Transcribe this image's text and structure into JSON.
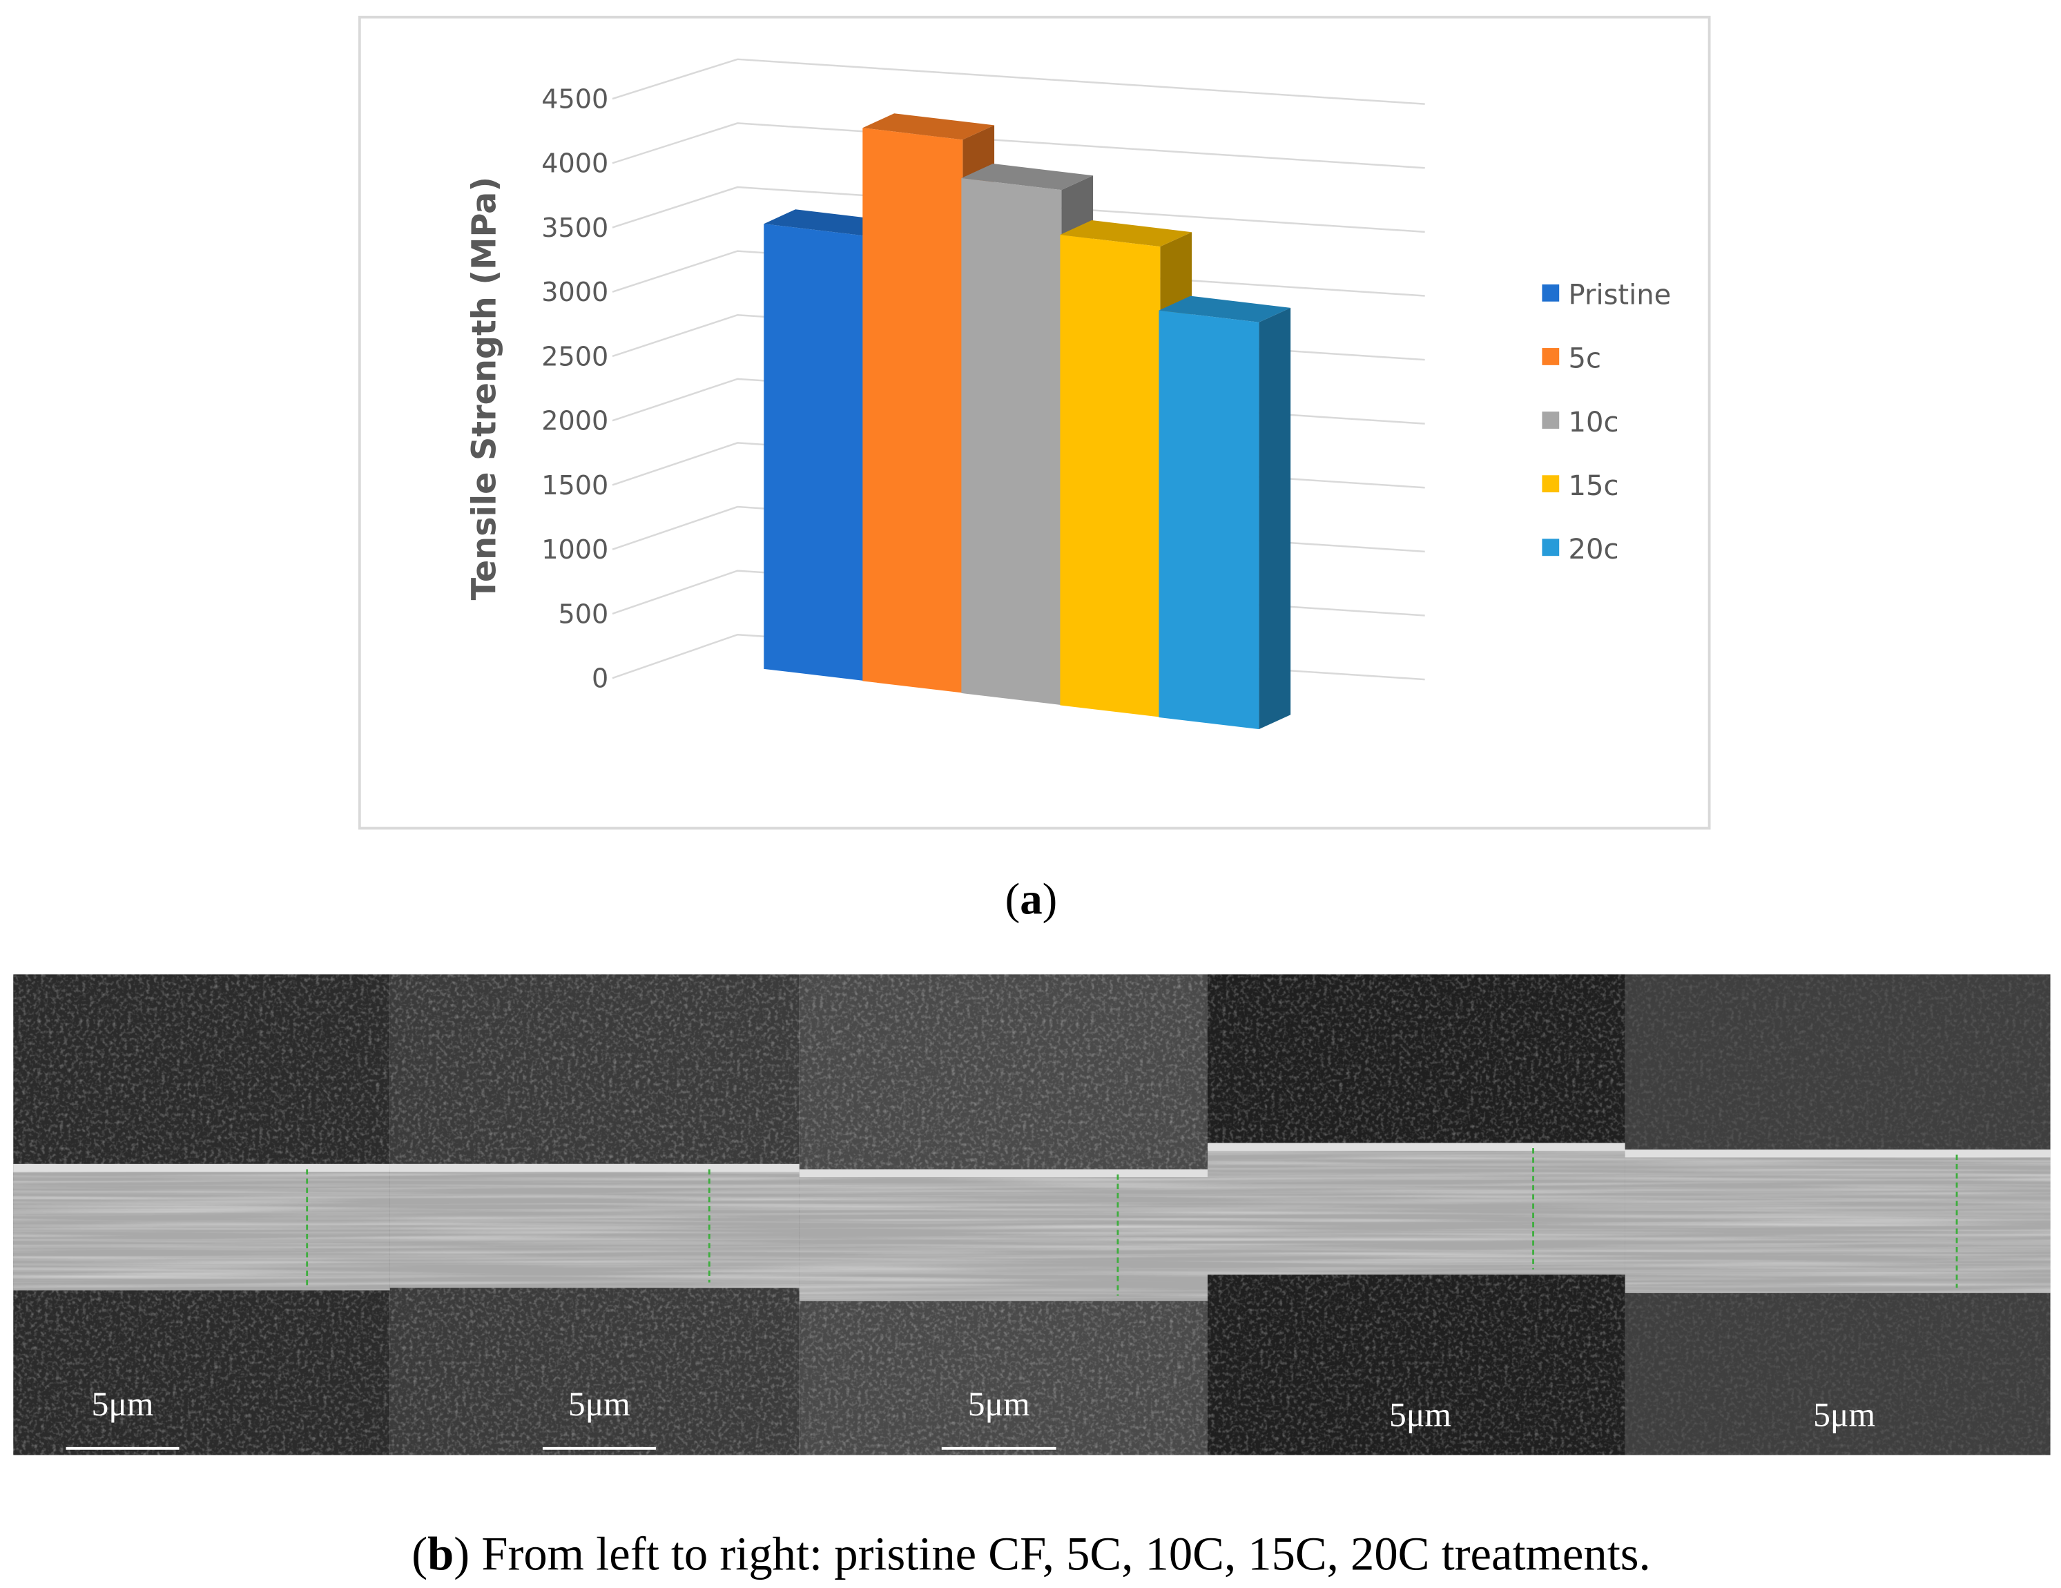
{
  "chart_data": {
    "type": "bar",
    "ylabel": "Tensile Strength (MPa)",
    "categories": [
      null
    ],
    "series": [
      {
        "name": "Pristine",
        "color": "#1f70d0",
        "values": [
          3500
        ]
      },
      {
        "name": "5c",
        "color": "#fd7f24",
        "values": [
          4350
        ]
      },
      {
        "name": "10c",
        "color": "#a6a6a6",
        "values": [
          4050
        ]
      },
      {
        "name": "15c",
        "color": "#ffc000",
        "values": [
          3700
        ]
      },
      {
        "name": "20c",
        "color": "#279bd9",
        "values": [
          3200
        ]
      }
    ],
    "ylim": [
      0,
      4500
    ],
    "yticks": [
      0,
      500,
      1000,
      1500,
      2000,
      2500,
      3000,
      3500,
      4000,
      4500
    ],
    "grid": true,
    "legend": "right"
  },
  "caption_a": [
    "(",
    "a",
    ")"
  ],
  "sem_panels": [
    {
      "scale_label": "5μm"
    },
    {
      "scale_label": "5μm"
    },
    {
      "scale_label": "5μm"
    },
    {
      "scale_label": "5μm"
    },
    {
      "scale_label": "5μm"
    }
  ],
  "caption_b": [
    "(",
    "b",
    ") From left to right: pristine CF, 5C, 10C, 15C, 20C treatments."
  ]
}
